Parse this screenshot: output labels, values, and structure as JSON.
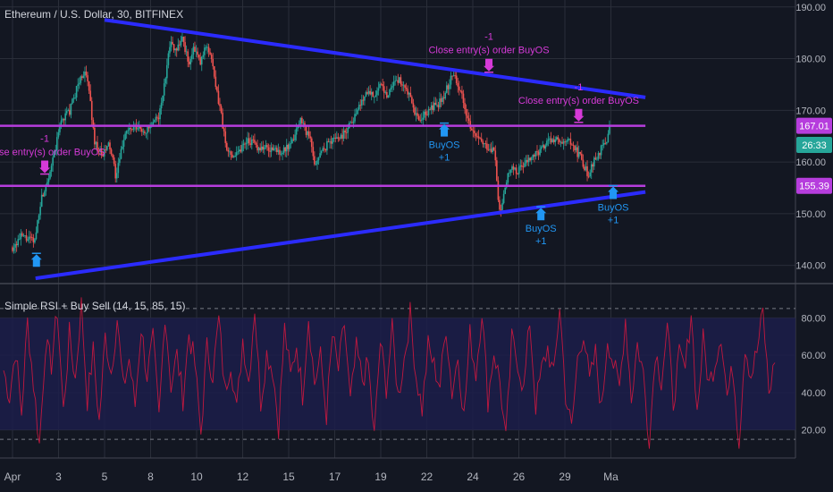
{
  "chart_data": [
    {
      "type": "candlestick",
      "title": "Ethereum / U.S. Dollar, 30, BITFINEX",
      "ylim": [
        137,
        191
      ],
      "y_ticks": [
        140,
        150,
        160,
        170,
        180,
        190
      ],
      "y_tick_labels": [
        "140.00",
        "150.00",
        "160.00",
        "170.00",
        "180.00",
        "190.00"
      ],
      "x_tick_labels": [
        "Apr",
        "3",
        "5",
        "8",
        "10",
        "12",
        "15",
        "17",
        "19",
        "22",
        "24",
        "26",
        "29",
        "Ma"
      ],
      "price_path": [
        {
          "x": 0,
          "y": 143.5
        },
        {
          "x": 0.2,
          "y": 145.6
        },
        {
          "x": 0.48,
          "y": 144.5
        },
        {
          "x": 0.6,
          "y": 152
        },
        {
          "x": 0.9,
          "y": 161
        },
        {
          "x": 1.05,
          "y": 168
        },
        {
          "x": 1.25,
          "y": 170
        },
        {
          "x": 1.42,
          "y": 175
        },
        {
          "x": 1.55,
          "y": 177.5
        },
        {
          "x": 1.65,
          "y": 175
        },
        {
          "x": 1.78,
          "y": 164
        },
        {
          "x": 1.95,
          "y": 161
        },
        {
          "x": 2.1,
          "y": 163.5
        },
        {
          "x": 2.25,
          "y": 157
        },
        {
          "x": 2.45,
          "y": 166
        },
        {
          "x": 2.7,
          "y": 166.5
        },
        {
          "x": 2.9,
          "y": 166
        },
        {
          "x": 3.05,
          "y": 167
        },
        {
          "x": 3.2,
          "y": 169.5
        },
        {
          "x": 3.32,
          "y": 176
        },
        {
          "x": 3.4,
          "y": 183
        },
        {
          "x": 3.55,
          "y": 182
        },
        {
          "x": 3.7,
          "y": 184
        },
        {
          "x": 3.82,
          "y": 179
        },
        {
          "x": 3.95,
          "y": 182
        },
        {
          "x": 4.08,
          "y": 179
        },
        {
          "x": 4.22,
          "y": 183
        },
        {
          "x": 4.32,
          "y": 180
        },
        {
          "x": 4.42,
          "y": 174
        },
        {
          "x": 4.52,
          "y": 170
        },
        {
          "x": 4.65,
          "y": 162
        },
        {
          "x": 4.8,
          "y": 161.5
        },
        {
          "x": 4.95,
          "y": 162.5
        },
        {
          "x": 5.1,
          "y": 164.5
        },
        {
          "x": 5.3,
          "y": 163
        },
        {
          "x": 5.6,
          "y": 162.5
        },
        {
          "x": 5.85,
          "y": 162
        },
        {
          "x": 6.05,
          "y": 163
        },
        {
          "x": 6.15,
          "y": 166
        },
        {
          "x": 6.28,
          "y": 168.5
        },
        {
          "x": 6.38,
          "y": 166
        },
        {
          "x": 6.48,
          "y": 164
        },
        {
          "x": 6.55,
          "y": 159.5
        },
        {
          "x": 6.65,
          "y": 161
        },
        {
          "x": 6.8,
          "y": 163
        },
        {
          "x": 6.95,
          "y": 164.5
        },
        {
          "x": 7.15,
          "y": 165
        },
        {
          "x": 7.3,
          "y": 167
        },
        {
          "x": 7.5,
          "y": 170
        },
        {
          "x": 7.7,
          "y": 174
        },
        {
          "x": 7.85,
          "y": 173
        },
        {
          "x": 8.0,
          "y": 174.5
        },
        {
          "x": 8.15,
          "y": 173
        },
        {
          "x": 8.3,
          "y": 176
        },
        {
          "x": 8.45,
          "y": 175.5
        },
        {
          "x": 8.6,
          "y": 173
        },
        {
          "x": 8.72,
          "y": 170
        },
        {
          "x": 8.85,
          "y": 167.5
        },
        {
          "x": 8.95,
          "y": 169
        },
        {
          "x": 9.1,
          "y": 170.5
        },
        {
          "x": 9.25,
          "y": 171
        },
        {
          "x": 9.4,
          "y": 173.5
        },
        {
          "x": 9.5,
          "y": 175.5
        },
        {
          "x": 9.58,
          "y": 177.5
        },
        {
          "x": 9.68,
          "y": 175
        },
        {
          "x": 9.8,
          "y": 172
        },
        {
          "x": 9.9,
          "y": 168
        },
        {
          "x": 10.0,
          "y": 165.5
        },
        {
          "x": 10.15,
          "y": 164
        },
        {
          "x": 10.3,
          "y": 163
        },
        {
          "x": 10.45,
          "y": 162.5
        },
        {
          "x": 10.5,
          "y": 160
        },
        {
          "x": 10.55,
          "y": 152
        },
        {
          "x": 10.6,
          "y": 150
        },
        {
          "x": 10.7,
          "y": 155
        },
        {
          "x": 10.82,
          "y": 159
        },
        {
          "x": 10.95,
          "y": 158
        },
        {
          "x": 11.1,
          "y": 159.5
        },
        {
          "x": 11.3,
          "y": 161
        },
        {
          "x": 11.5,
          "y": 162.5
        },
        {
          "x": 11.65,
          "y": 164
        },
        {
          "x": 11.8,
          "y": 164.5
        },
        {
          "x": 11.95,
          "y": 163
        },
        {
          "x": 12.05,
          "y": 164
        },
        {
          "x": 12.15,
          "y": 163.5
        },
        {
          "x": 12.25,
          "y": 162
        },
        {
          "x": 12.35,
          "y": 161
        },
        {
          "x": 12.45,
          "y": 158.5
        },
        {
          "x": 12.5,
          "y": 157.5
        },
        {
          "x": 12.58,
          "y": 159.5
        },
        {
          "x": 12.7,
          "y": 161
        },
        {
          "x": 12.82,
          "y": 163
        },
        {
          "x": 12.9,
          "y": 164
        },
        {
          "x": 12.97,
          "y": 166.5
        }
      ],
      "lines": [
        {
          "name": "descending-trendline",
          "color": "#2b2bff",
          "points": [
            [
              2.0,
              187.5
            ],
            [
              13.75,
              172.5
            ]
          ]
        },
        {
          "name": "ascending-trendline",
          "color": "#2b2bff",
          "points": [
            [
              0.5,
              137.5
            ],
            [
              13.75,
              154.2
            ]
          ]
        },
        {
          "name": "resistance-line",
          "color": "#b63ddd",
          "points": [
            [
              -0.3,
              167.0
            ],
            [
              13.75,
              167.0
            ]
          ]
        },
        {
          "name": "support-line",
          "color": "#b63ddd",
          "points": [
            [
              -0.3,
              155.4
            ],
            [
              13.75,
              155.4
            ]
          ]
        }
      ],
      "price_labels": [
        {
          "text": "167.01",
          "y": 167.01,
          "color": "#b63ddd"
        },
        {
          "text": "26:33",
          "y": 163.3,
          "color": "#26a69a"
        },
        {
          "text": "155.39",
          "y": 155.39,
          "color": "#b63ddd"
        }
      ],
      "signals": [
        {
          "type": "close",
          "x": 0.7,
          "y": 157.5,
          "top": "-1",
          "label": "Close entry(s) order BuyOS"
        },
        {
          "type": "close",
          "x": 10.35,
          "y": 177.2,
          "top": "-1",
          "label": "Close entry(s) order BuyOS"
        },
        {
          "type": "close",
          "x": 12.3,
          "y": 167.5,
          "top": "-1",
          "label": "Close entry(s) order BuyOS"
        },
        {
          "type": "buy",
          "x": 0.52,
          "y": 142.5,
          "label": "",
          "bottom": ""
        },
        {
          "type": "buy",
          "x": 9.38,
          "y": 167.7,
          "label": "BuyOS",
          "bottom": "+1"
        },
        {
          "type": "buy",
          "x": 11.48,
          "y": 151.5,
          "label": "BuyOS",
          "bottom": "+1"
        },
        {
          "type": "buy",
          "x": 13.05,
          "y": 155.6,
          "label": "BuyOS",
          "bottom": "+1"
        }
      ]
    },
    {
      "type": "line",
      "title": "Simple RSI + Buy Sell (14, 15, 85, 15)",
      "ylim": [
        5,
        95
      ],
      "y_ticks": [
        20,
        40,
        60,
        80
      ],
      "y_tick_labels": [
        "20.00",
        "40.00",
        "60.00",
        "80.00"
      ],
      "bands": {
        "upper": 85,
        "lower": 15,
        "fill_top": 80,
        "fill_bottom": 20
      },
      "series": [
        {
          "values": [
            52,
            38,
            63,
            29,
            78,
            45,
            12,
            66,
            55,
            84,
            30,
            71,
            47,
            88,
            36,
            62,
            24,
            70,
            51,
            80,
            42,
            58,
            33,
            75,
            49,
            68,
            26,
            83,
            44,
            60,
            37,
            72,
            55,
            18,
            64,
            50,
            79,
            41,
            57,
            30,
            69,
            46,
            86,
            35,
            61,
            53,
            22,
            74,
            48,
            66,
            39,
            81,
            45,
            59,
            28,
            70,
            52,
            77,
            34,
            63,
            47,
            55,
            16,
            67,
            43,
            73,
            38,
            58,
            82,
            49,
            31,
            65,
            54,
            44,
            76,
            40,
            60,
            27,
            71,
            50,
            85,
            36,
            62,
            46,
            14,
            68,
            57,
            41,
            79,
            33,
            52,
            64,
            48,
            87,
            39,
            20,
            58,
            73,
            45,
            61,
            30,
            70,
            55,
            42,
            80,
            37,
            66,
            50,
            12,
            63,
            47,
            75,
            35,
            59,
            52,
            84,
            29,
            68,
            44,
            57,
            72,
            38,
            53,
            13,
            66,
            49,
            62,
            83,
            40,
            56
          ]
        }
      ]
    }
  ]
}
